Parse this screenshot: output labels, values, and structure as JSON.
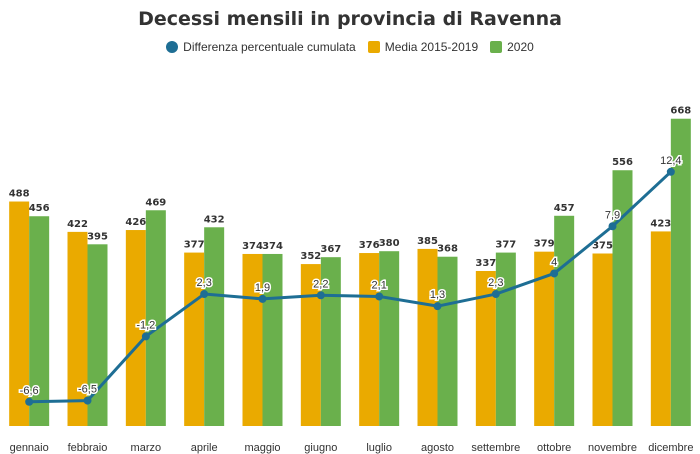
{
  "chart_data": {
    "type": "bar",
    "title": "Decessi mensili in provincia di Ravenna",
    "categories": [
      "gennaio",
      "febbraio",
      "marzo",
      "aprile",
      "maggio",
      "giugno",
      "luglio",
      "agosto",
      "settembre",
      "ottobre",
      "novembre",
      "dicembre"
    ],
    "series": [
      {
        "name": "Media 2015-2019",
        "color": "#eaaa00",
        "values": [
          488,
          422,
          426,
          377,
          374,
          352,
          376,
          385,
          337,
          379,
          375,
          423
        ]
      },
      {
        "name": "2020",
        "color": "#6ab04c",
        "values": [
          456,
          395,
          469,
          432,
          374,
          367,
          380,
          368,
          377,
          457,
          556,
          668
        ]
      }
    ],
    "line_series": {
      "name": "Differenza percentuale cumulata",
      "color": "#1e6e94",
      "values": [
        -6.6,
        -6.5,
        -1.2,
        2.3,
        1.9,
        2.2,
        2.1,
        1.3,
        2.3,
        4,
        7.9,
        12.4
      ],
      "labels": [
        "-6,6",
        "-6,5",
        "-1,2",
        "2,3",
        "1,9",
        "2,2",
        "2,1",
        "1,3",
        "2,3",
        "4",
        "7,9",
        "12,4"
      ]
    },
    "ylim_bars": [
      0,
      700
    ],
    "ylim_line": [
      -8.6,
      18
    ],
    "legend_position": "top-center",
    "grid": false
  }
}
